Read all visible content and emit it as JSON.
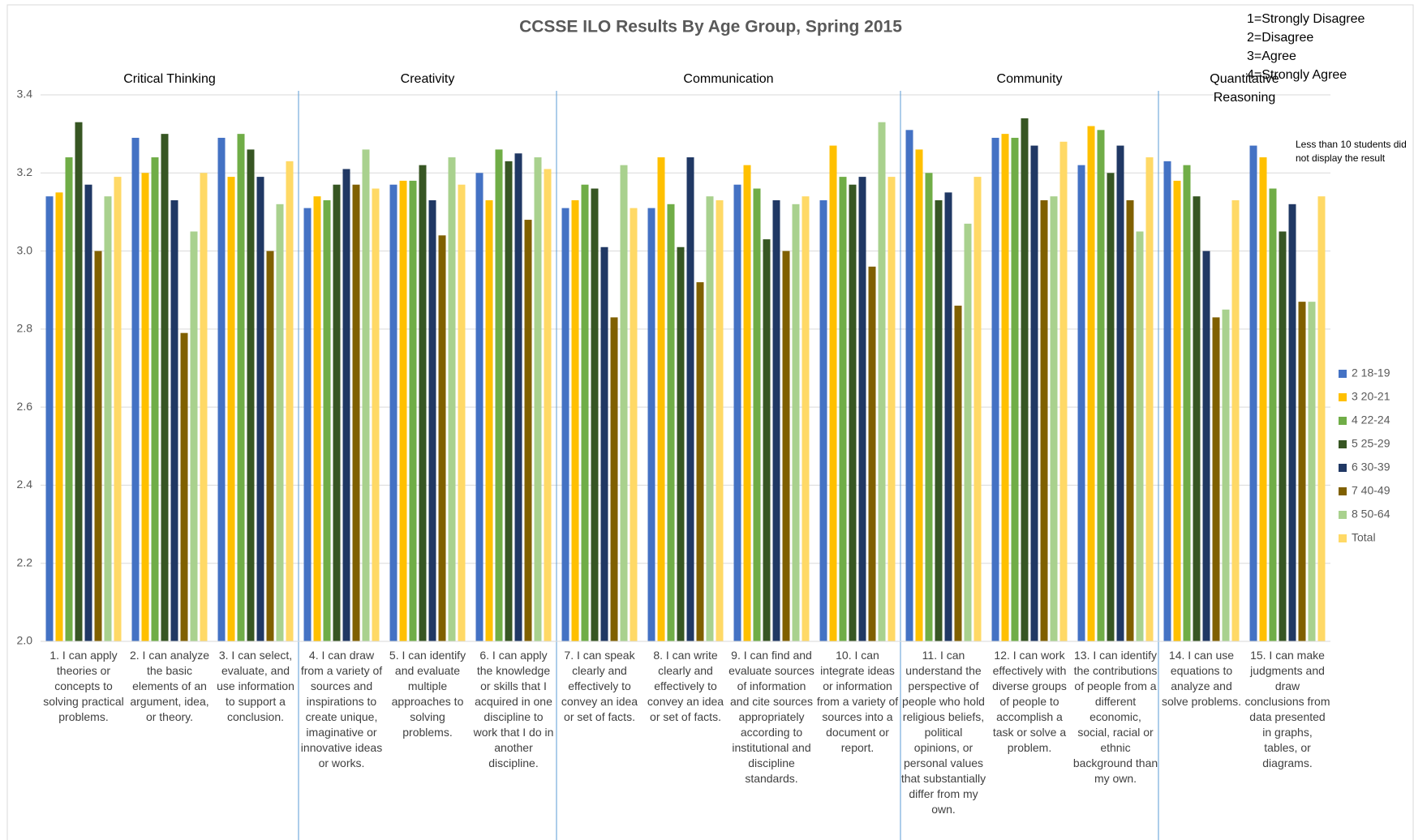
{
  "chart_data": {
    "type": "bar",
    "title": "CCSSE ILO Results By Age Group, Spring 2015",
    "sections": [
      "Critical Thinking",
      "Creativity",
      "Communication",
      "Community",
      "Quantitative Reasoning"
    ],
    "annotations": [
      "1=Strongly Disagree",
      "2=Disagree",
      "3=Agree",
      "4=Strongly Agree"
    ],
    "note": "Less than 10 students did not display the result",
    "categories": [
      "1. I can apply theories or concepts to solving practical problems.",
      "2. I can analyze the basic elements of an argument, idea, or theory.",
      "3. I can select, evaluate, and use information to support a conclusion.",
      "4. I can draw from a variety of sources and inspirations to create unique, imaginative or innovative ideas or works.",
      "5. I can identify and evaluate multiple approaches to solving problems.",
      "6. I can apply the knowledge or skills that I acquired in one discipline to work that I do in another discipline.",
      "7. I can speak clearly and effectively to convey an idea or set of facts.",
      "8. I can write clearly and effectively to convey an idea or set of facts.",
      "9. I can find and evaluate sources of information and cite sources appropriately according to institutional and discipline standards.",
      "10. I can integrate ideas or information from a variety of sources into a document or report.",
      "11. I can understand the perspective of people who hold religious beliefs, political opinions, or personal values that substantially differ from my own.",
      "12. I can work effectively with diverse groups of people to accomplish a task or solve a problem.",
      "13. I can identify the contributions of people from a different economic, social, racial or ethnic background than my own.",
      "14. I can use equations to analyze and solve problems.",
      "15. I can make judgments and draw conclusions from data presented in graphs, tables, or diagrams."
    ],
    "series": [
      {
        "name": "2 18-19",
        "color": "#4472c4",
        "values": [
          3.14,
          3.29,
          3.29,
          3.11,
          3.17,
          3.2,
          3.11,
          3.11,
          3.17,
          3.13,
          3.31,
          3.29,
          3.22,
          3.23,
          3.27
        ]
      },
      {
        "name": "3 20-21",
        "color": "#ffc000",
        "values": [
          3.15,
          3.2,
          3.19,
          3.14,
          3.18,
          3.13,
          3.13,
          3.24,
          3.22,
          3.27,
          3.26,
          3.3,
          3.32,
          3.18,
          3.24
        ]
      },
      {
        "name": "4 22-24",
        "color": "#70ad47",
        "values": [
          3.24,
          3.24,
          3.3,
          3.13,
          3.18,
          3.26,
          3.17,
          3.12,
          3.16,
          3.19,
          3.2,
          3.29,
          3.31,
          3.22,
          3.16
        ]
      },
      {
        "name": "5 25-29",
        "color": "#375623",
        "values": [
          3.33,
          3.3,
          3.26,
          3.17,
          3.22,
          3.23,
          3.16,
          3.01,
          3.03,
          3.17,
          3.13,
          3.34,
          3.2,
          3.14,
          3.05
        ]
      },
      {
        "name": "6 30-39",
        "color": "#203864",
        "values": [
          3.17,
          3.13,
          3.19,
          3.21,
          3.13,
          3.25,
          3.01,
          3.24,
          3.13,
          3.19,
          3.15,
          3.27,
          3.27,
          3.0,
          3.12
        ]
      },
      {
        "name": "7 40-49",
        "color": "#806000",
        "values": [
          3.0,
          2.79,
          3.0,
          3.17,
          3.04,
          3.08,
          2.83,
          2.92,
          3.0,
          2.96,
          2.86,
          3.13,
          3.13,
          2.83,
          2.87
        ]
      },
      {
        "name": "8 50-64",
        "color": "#a9d18e",
        "values": [
          3.14,
          3.05,
          3.12,
          3.26,
          3.24,
          3.24,
          3.22,
          3.14,
          3.12,
          3.33,
          3.07,
          3.14,
          3.05,
          2.85,
          2.87
        ]
      },
      {
        "name": "Total",
        "color": "#ffd966",
        "values": [
          3.19,
          3.2,
          3.23,
          3.16,
          3.17,
          3.21,
          3.11,
          3.13,
          3.14,
          3.19,
          3.19,
          3.28,
          3.24,
          3.13,
          3.14
        ]
      }
    ],
    "ylim": [
      2,
      3.4
    ],
    "yticks": [
      {
        "value": 2,
        "label": "2.0"
      },
      2.2,
      2.4,
      2.6,
      2.8,
      {
        "value": 3,
        "label": "3.0"
      },
      3.2,
      3.4
    ],
    "grid": true,
    "legend": "right"
  }
}
